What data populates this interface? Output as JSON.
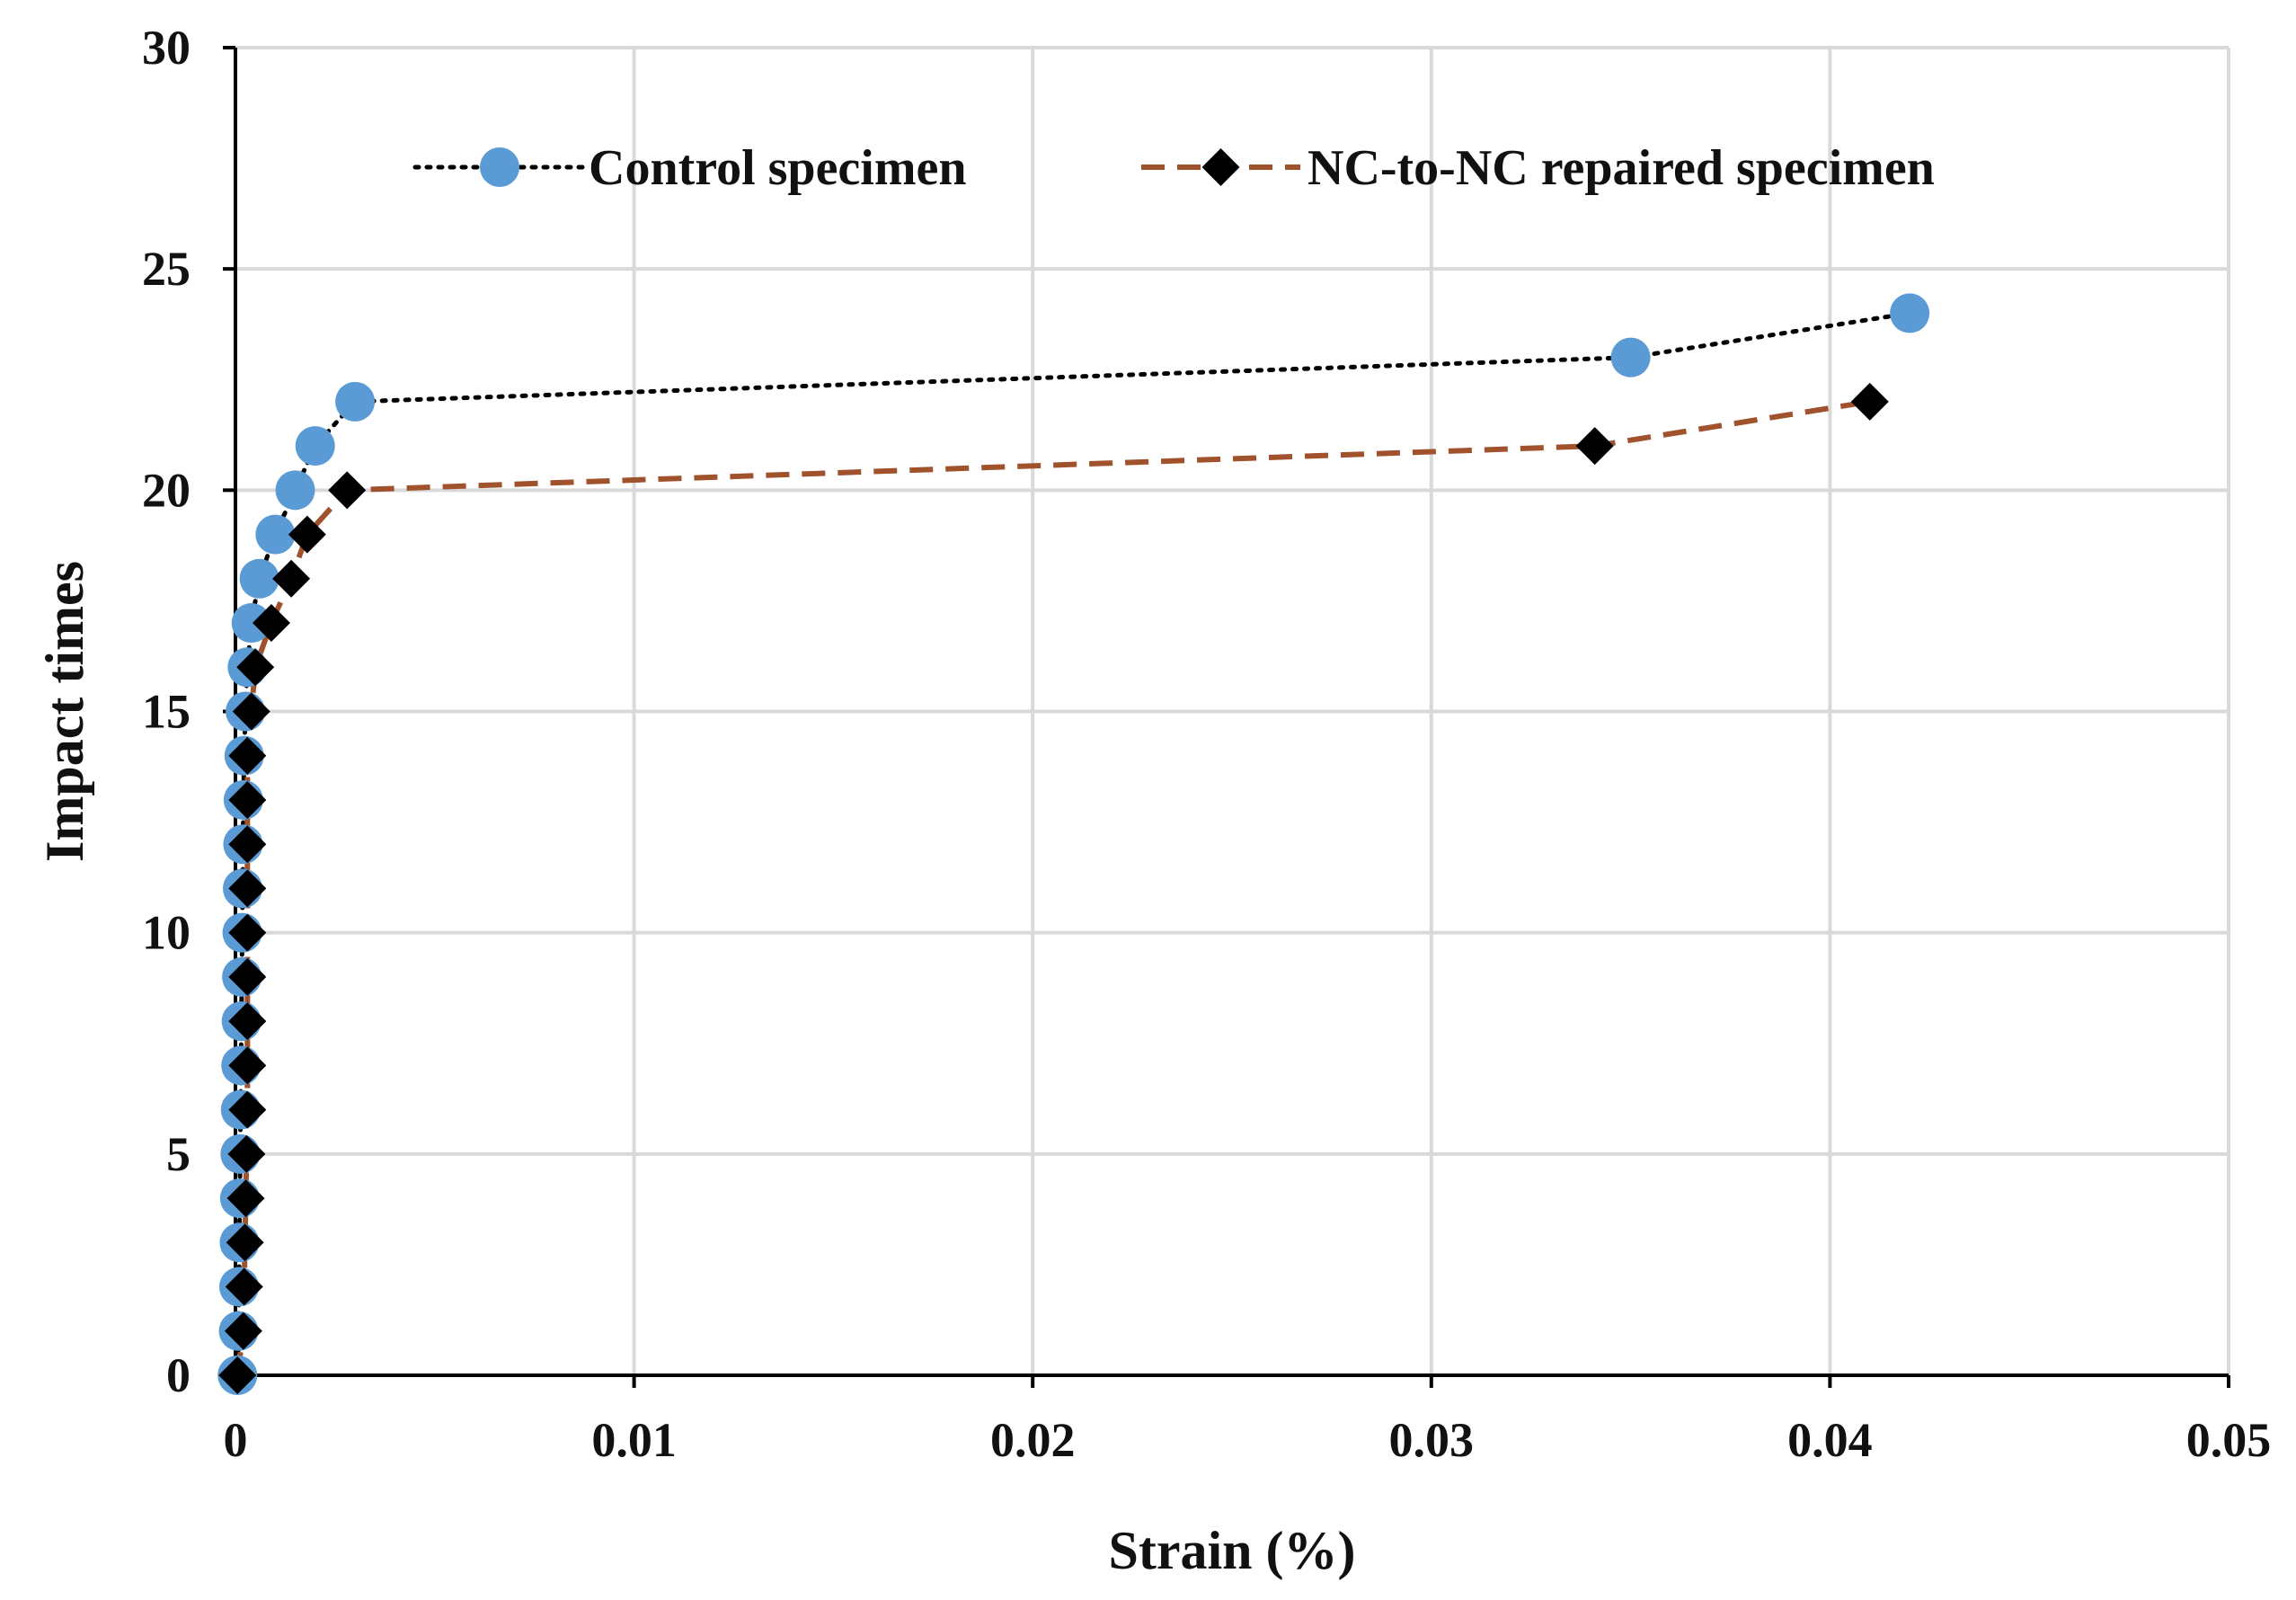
{
  "chart_data": {
    "type": "line",
    "title": "",
    "xlabel": "Strain (%)",
    "ylabel": "Impact times",
    "xlim": [
      0,
      0.05
    ],
    "ylim": [
      0,
      30
    ],
    "xticks": [
      0,
      0.01,
      0.02,
      0.03,
      0.04,
      0.05
    ],
    "xtick_labels": [
      "0",
      "0.01",
      "0.02",
      "0.03",
      "0.04",
      "0.05"
    ],
    "yticks": [
      0,
      5,
      10,
      15,
      20,
      25,
      30
    ],
    "ytick_labels": [
      "0",
      "5",
      "10",
      "15",
      "20",
      "25",
      "30"
    ],
    "grid": true,
    "legend_position": "top",
    "series": [
      {
        "name": "Control specimen",
        "color": "#5b9bd5",
        "line_style": "dotted",
        "line_color": "#000000",
        "marker": "circle",
        "points": [
          {
            "x": 5e-05,
            "y": 0
          },
          {
            "x": 8e-05,
            "y": 1
          },
          {
            "x": 9e-05,
            "y": 2
          },
          {
            "x": 0.0001,
            "y": 3
          },
          {
            "x": 0.00011,
            "y": 4
          },
          {
            "x": 0.00012,
            "y": 5
          },
          {
            "x": 0.00013,
            "y": 6
          },
          {
            "x": 0.00014,
            "y": 7
          },
          {
            "x": 0.00015,
            "y": 8
          },
          {
            "x": 0.00016,
            "y": 9
          },
          {
            "x": 0.00017,
            "y": 10
          },
          {
            "x": 0.00018,
            "y": 11
          },
          {
            "x": 0.00019,
            "y": 12
          },
          {
            "x": 0.0002,
            "y": 13
          },
          {
            "x": 0.00022,
            "y": 14
          },
          {
            "x": 0.00025,
            "y": 15
          },
          {
            "x": 0.0003,
            "y": 16
          },
          {
            "x": 0.0004,
            "y": 17
          },
          {
            "x": 0.0006,
            "y": 18
          },
          {
            "x": 0.001,
            "y": 19
          },
          {
            "x": 0.0015,
            "y": 20
          },
          {
            "x": 0.002,
            "y": 21
          },
          {
            "x": 0.003,
            "y": 22
          },
          {
            "x": 0.035,
            "y": 23
          },
          {
            "x": 0.042,
            "y": 24
          }
        ]
      },
      {
        "name": "NC-to-NC repaired specimen",
        "color": "#000000",
        "line_style": "dashed",
        "line_color": "#a0522d",
        "marker": "diamond",
        "points": [
          {
            "x": 5e-05,
            "y": 0
          },
          {
            "x": 0.0002,
            "y": 1
          },
          {
            "x": 0.00022,
            "y": 2
          },
          {
            "x": 0.00024,
            "y": 3
          },
          {
            "x": 0.00026,
            "y": 4
          },
          {
            "x": 0.00028,
            "y": 5
          },
          {
            "x": 0.0003,
            "y": 6
          },
          {
            "x": 0.0003,
            "y": 7
          },
          {
            "x": 0.0003,
            "y": 8
          },
          {
            "x": 0.0003,
            "y": 9
          },
          {
            "x": 0.0003,
            "y": 10
          },
          {
            "x": 0.0003,
            "y": 11
          },
          {
            "x": 0.0003,
            "y": 12
          },
          {
            "x": 0.0003,
            "y": 13
          },
          {
            "x": 0.0003,
            "y": 14
          },
          {
            "x": 0.0004,
            "y": 15
          },
          {
            "x": 0.0005,
            "y": 16
          },
          {
            "x": 0.0009,
            "y": 17
          },
          {
            "x": 0.0014,
            "y": 18
          },
          {
            "x": 0.0018,
            "y": 19
          },
          {
            "x": 0.0028,
            "y": 20
          },
          {
            "x": 0.0341,
            "y": 21
          },
          {
            "x": 0.041,
            "y": 22
          }
        ]
      }
    ]
  }
}
